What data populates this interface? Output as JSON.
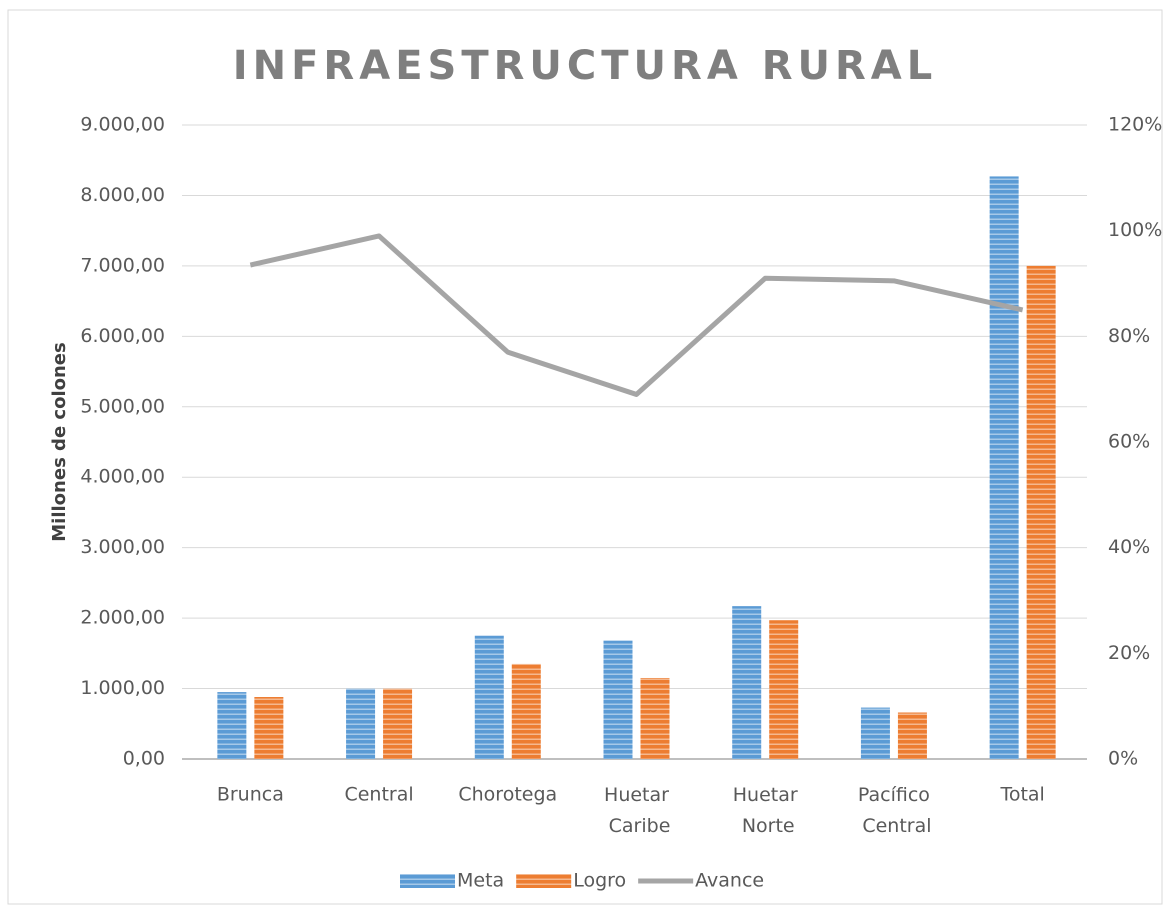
{
  "chart_data": {
    "type": "bar_line",
    "title": "INFRAESTRUCTURA RURAL",
    "y_label": "Millones de colones",
    "categories": [
      "Brunca",
      "Central",
      "Chorotega",
      "Huetar Caribe",
      "Huetar Norte",
      "Pacífico Central",
      "Total"
    ],
    "series": [
      {
        "name": "Meta",
        "color": "#5b9bd5",
        "type": "bar",
        "values": [
          950,
          1000,
          1750,
          1680,
          2170,
          730,
          8270
        ]
      },
      {
        "name": "Logro",
        "color": "#ed7d31",
        "type": "bar",
        "values": [
          880,
          1000,
          1350,
          1150,
          1970,
          660,
          7000
        ]
      },
      {
        "name": "Avance",
        "color": "#a5a5a5",
        "type": "line",
        "axis": "y2",
        "values": [
          93.5,
          99,
          77,
          69,
          91,
          90.5,
          85
        ]
      }
    ],
    "ylim": [
      0,
      9000
    ],
    "yticks": [
      {
        "value": 0,
        "label": "0,00"
      },
      {
        "value": 1000,
        "label": "1.000,00"
      },
      {
        "value": 2000,
        "label": "2.000,00"
      },
      {
        "value": 3000,
        "label": "3.000,00"
      },
      {
        "value": 4000,
        "label": "4.000,00"
      },
      {
        "value": 5000,
        "label": "5.000,00"
      },
      {
        "value": 6000,
        "label": "6.000,00"
      },
      {
        "value": 7000,
        "label": "7.000,00"
      },
      {
        "value": 8000,
        "label": "8.000,00"
      },
      {
        "value": 9000,
        "label": "9.000,00"
      }
    ],
    "y2lim": [
      0,
      120
    ],
    "y2ticks": [
      {
        "value": 0,
        "label": "0%"
      },
      {
        "value": 20,
        "label": "20%"
      },
      {
        "value": 40,
        "label": "40%"
      },
      {
        "value": 60,
        "label": "60%"
      },
      {
        "value": 80,
        "label": "80%"
      },
      {
        "value": 100,
        "label": "100%"
      },
      {
        "value": 120,
        "label": "120%"
      }
    ],
    "grid": true,
    "legend": "bottom"
  }
}
